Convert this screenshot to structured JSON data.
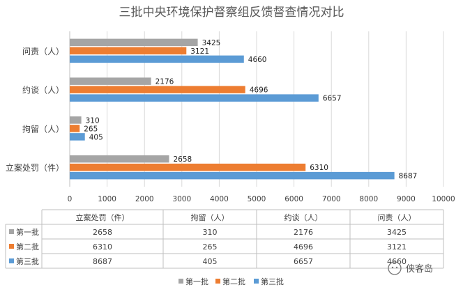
{
  "chart_data": {
    "type": "bar",
    "orientation": "horizontal",
    "title": "三批中央环境保护督察组反馈督查情况对比",
    "categories": [
      "立案处罚（件）",
      "拘留（人）",
      "约谈（人）",
      "问责（人）"
    ],
    "series": [
      {
        "name": "第一批",
        "color": "#a5a5a5",
        "values": [
          2658,
          310,
          2176,
          3425
        ]
      },
      {
        "name": "第二批",
        "color": "#ed7d31",
        "values": [
          6310,
          265,
          4696,
          3121
        ]
      },
      {
        "name": "第三批",
        "color": "#5b9bd5",
        "values": [
          8687,
          405,
          6657,
          4660
        ]
      }
    ],
    "xlim": [
      0,
      10000
    ],
    "xticks": [
      0,
      1000,
      2000,
      3000,
      4000,
      5000,
      6000,
      7000,
      8000,
      9000,
      10000
    ],
    "grid": true,
    "legend_position": "bottom",
    "data_table": true
  },
  "watermark": {
    "text": "侠客岛",
    "icon": "wechat-icon"
  }
}
